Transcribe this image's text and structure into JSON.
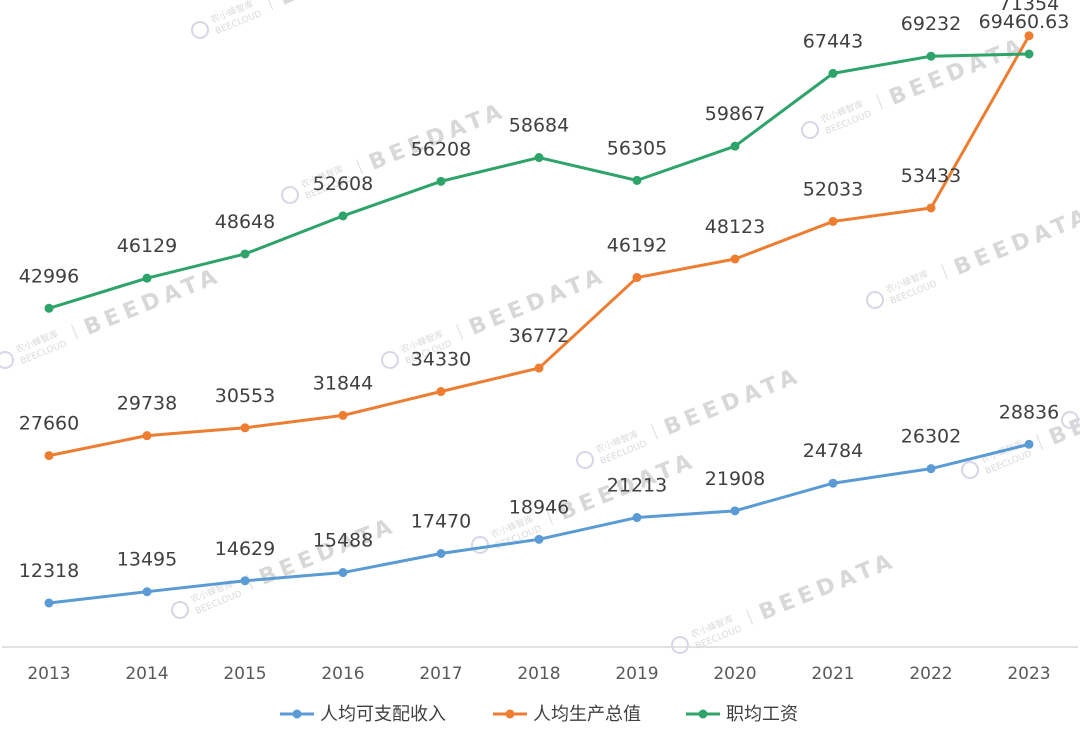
{
  "chart_data": {
    "type": "line",
    "title": "",
    "xlabel": "",
    "ylabel": "",
    "categories": [
      "2013",
      "2014",
      "2015",
      "2016",
      "2017",
      "2018",
      "2019",
      "2020",
      "2021",
      "2022",
      "2023"
    ],
    "series": [
      {
        "name": "人均可支配收入",
        "color": "#5b9bd5",
        "values": [
          12318,
          13495,
          14629,
          15488,
          17470,
          18946,
          21213,
          21908,
          24784,
          26302,
          28836
        ],
        "labels": [
          "12318",
          "13495",
          "14629",
          "15488",
          "17470",
          "18946",
          "21213",
          "21908",
          "24784",
          "26302",
          "28836"
        ]
      },
      {
        "name": "人均生产总值",
        "color": "#ed7d31",
        "values": [
          27660,
          29738,
          30553,
          31844,
          34330,
          36772,
          46192,
          48123,
          52033,
          53433,
          71354
        ],
        "labels": [
          "27660",
          "29738",
          "30553",
          "31844",
          "34330",
          "36772",
          "46192",
          "48123",
          "52033",
          "53433",
          "71354"
        ]
      },
      {
        "name": "职均工资",
        "color": "#2ea36a",
        "values": [
          42996,
          46129,
          48648,
          52608,
          56208,
          58684,
          56305,
          59867,
          67443,
          69232,
          69460.63
        ],
        "labels": [
          "42996",
          "46129",
          "48648",
          "52608",
          "56208",
          "58684",
          "56305",
          "59867",
          "67443",
          "69232",
          "69460.63"
        ]
      }
    ],
    "legend_position": "bottom",
    "grid": false
  },
  "watermark": {
    "text": "BEEDATA",
    "subtext": "BEECLOUD",
    "cn_text": "农小蜂智库"
  }
}
